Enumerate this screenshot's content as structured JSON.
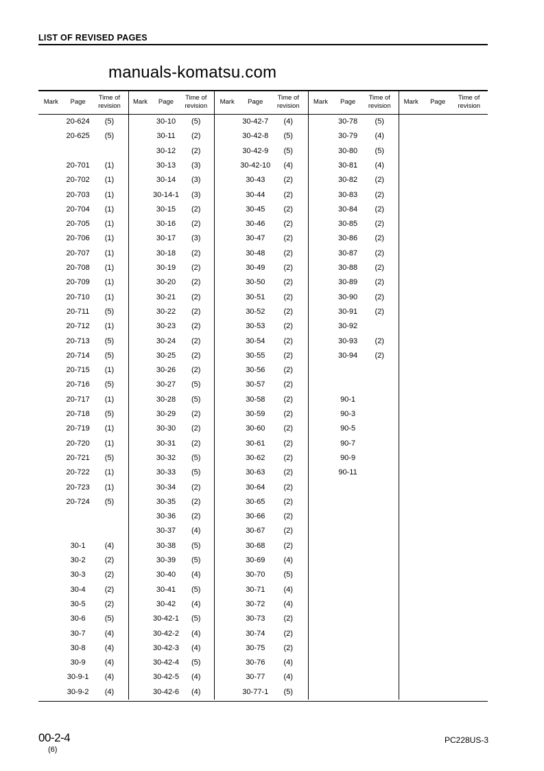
{
  "header": {
    "title": "LIST OF REVISED PAGES"
  },
  "table": {
    "headers": {
      "mark": "Mark",
      "page": "Page",
      "time_line1": "Time of",
      "time_line2": "revision"
    },
    "columns": [
      [
        [
          "20-624",
          "(5)"
        ],
        [
          "20-625",
          "(5)"
        ],
        [
          "",
          ""
        ],
        [
          "20-701",
          "(1)"
        ],
        [
          "20-702",
          "(1)"
        ],
        [
          "20-703",
          "(1)"
        ],
        [
          "20-704",
          "(1)"
        ],
        [
          "20-705",
          "(1)"
        ],
        [
          "20-706",
          "(1)"
        ],
        [
          "20-707",
          "(1)"
        ],
        [
          "20-708",
          "(1)"
        ],
        [
          "20-709",
          "(1)"
        ],
        [
          "20-710",
          "(1)"
        ],
        [
          "20-711",
          "(5)"
        ],
        [
          "20-712",
          "(1)"
        ],
        [
          "20-713",
          "(5)"
        ],
        [
          "20-714",
          "(5)"
        ],
        [
          "20-715",
          "(1)"
        ],
        [
          "20-716",
          "(5)"
        ],
        [
          "20-717",
          "(1)"
        ],
        [
          "20-718",
          "(5)"
        ],
        [
          "20-719",
          "(1)"
        ],
        [
          "20-720",
          "(1)"
        ],
        [
          "20-721",
          "(5)"
        ],
        [
          "20-722",
          "(1)"
        ],
        [
          "20-723",
          "(1)"
        ],
        [
          "20-724",
          "(5)"
        ],
        [
          "",
          ""
        ],
        [
          "",
          ""
        ],
        [
          "30-1",
          "(4)"
        ],
        [
          "30-2",
          "(2)"
        ],
        [
          "30-3",
          "(2)"
        ],
        [
          "30-4",
          "(2)"
        ],
        [
          "30-5",
          "(2)"
        ],
        [
          "30-6",
          "(5)"
        ],
        [
          "30-7",
          "(4)"
        ],
        [
          "30-8",
          "(4)"
        ],
        [
          "30-9",
          "(4)"
        ],
        [
          "30-9-1",
          "(4)"
        ],
        [
          "30-9-2",
          "(4)"
        ]
      ],
      [
        [
          "30-10",
          "(5)"
        ],
        [
          "30-11",
          "(2)"
        ],
        [
          "30-12",
          "(2)"
        ],
        [
          "30-13",
          "(3)"
        ],
        [
          "30-14",
          "(3)"
        ],
        [
          "30-14-1",
          "(3)"
        ],
        [
          "30-15",
          "(2)"
        ],
        [
          "30-16",
          "(2)"
        ],
        [
          "30-17",
          "(3)"
        ],
        [
          "30-18",
          "(2)"
        ],
        [
          "30-19",
          "(2)"
        ],
        [
          "30-20",
          "(2)"
        ],
        [
          "30-21",
          "(2)"
        ],
        [
          "30-22",
          "(2)"
        ],
        [
          "30-23",
          "(2)"
        ],
        [
          "30-24",
          "(2)"
        ],
        [
          "30-25",
          "(2)"
        ],
        [
          "30-26",
          "(2)"
        ],
        [
          "30-27",
          "(5)"
        ],
        [
          "30-28",
          "(5)"
        ],
        [
          "30-29",
          "(2)"
        ],
        [
          "30-30",
          "(2)"
        ],
        [
          "30-31",
          "(2)"
        ],
        [
          "30-32",
          "(5)"
        ],
        [
          "30-33",
          "(5)"
        ],
        [
          "30-34",
          "(2)"
        ],
        [
          "30-35",
          "(2)"
        ],
        [
          "30-36",
          "(2)"
        ],
        [
          "30-37",
          "(4)"
        ],
        [
          "30-38",
          "(5)"
        ],
        [
          "30-39",
          "(5)"
        ],
        [
          "30-40",
          "(4)"
        ],
        [
          "30-41",
          "(5)"
        ],
        [
          "30-42",
          "(4)"
        ],
        [
          "30-42-1",
          "(5)"
        ],
        [
          "30-42-2",
          "(4)"
        ],
        [
          "30-42-3",
          "(4)"
        ],
        [
          "30-42-4",
          "(5)"
        ],
        [
          "30-42-5",
          "(4)"
        ],
        [
          "30-42-6",
          "(4)"
        ]
      ],
      [
        [
          "30-42-7",
          "(4)"
        ],
        [
          "30-42-8",
          "(5)"
        ],
        [
          "30-42-9",
          "(5)"
        ],
        [
          "30-42-10",
          "(4)"
        ],
        [
          "30-43",
          "(2)"
        ],
        [
          "30-44",
          "(2)"
        ],
        [
          "30-45",
          "(2)"
        ],
        [
          "30-46",
          "(2)"
        ],
        [
          "30-47",
          "(2)"
        ],
        [
          "30-48",
          "(2)"
        ],
        [
          "30-49",
          "(2)"
        ],
        [
          "30-50",
          "(2)"
        ],
        [
          "30-51",
          "(2)"
        ],
        [
          "30-52",
          "(2)"
        ],
        [
          "30-53",
          "(2)"
        ],
        [
          "30-54",
          "(2)"
        ],
        [
          "30-55",
          "(2)"
        ],
        [
          "30-56",
          "(2)"
        ],
        [
          "30-57",
          "(2)"
        ],
        [
          "30-58",
          "(2)"
        ],
        [
          "30-59",
          "(2)"
        ],
        [
          "30-60",
          "(2)"
        ],
        [
          "30-61",
          "(2)"
        ],
        [
          "30-62",
          "(2)"
        ],
        [
          "30-63",
          "(2)"
        ],
        [
          "30-64",
          "(2)"
        ],
        [
          "30-65",
          "(2)"
        ],
        [
          "30-66",
          "(2)"
        ],
        [
          "30-67",
          "(2)"
        ],
        [
          "30-68",
          "(2)"
        ],
        [
          "30-69",
          "(4)"
        ],
        [
          "30-70",
          "(5)"
        ],
        [
          "30-71",
          "(4)"
        ],
        [
          "30-72",
          "(4)"
        ],
        [
          "30-73",
          "(2)"
        ],
        [
          "30-74",
          "(2)"
        ],
        [
          "30-75",
          "(2)"
        ],
        [
          "30-76",
          "(4)"
        ],
        [
          "30-77",
          "(4)"
        ],
        [
          "30-77-1",
          "(5)"
        ]
      ],
      [
        [
          "30-78",
          "(5)"
        ],
        [
          "30-79",
          "(4)"
        ],
        [
          "30-80",
          "(5)"
        ],
        [
          "30-81",
          "(4)"
        ],
        [
          "30-82",
          "(2)"
        ],
        [
          "30-83",
          "(2)"
        ],
        [
          "30-84",
          "(2)"
        ],
        [
          "30-85",
          "(2)"
        ],
        [
          "30-86",
          "(2)"
        ],
        [
          "30-87",
          "(2)"
        ],
        [
          "30-88",
          "(2)"
        ],
        [
          "30-89",
          "(2)"
        ],
        [
          "30-90",
          "(2)"
        ],
        [
          "30-91",
          "(2)"
        ],
        [
          "30-92",
          ""
        ],
        [
          "30-93",
          "(2)"
        ],
        [
          "30-94",
          "(2)"
        ],
        [
          "",
          ""
        ],
        [
          "",
          ""
        ],
        [
          "90-1",
          ""
        ],
        [
          "90-3",
          ""
        ],
        [
          "90-5",
          ""
        ],
        [
          "90-7",
          ""
        ],
        [
          "90-9",
          ""
        ],
        [
          "90-11",
          ""
        ]
      ],
      []
    ]
  },
  "watermark": "manuals-komatsu.com",
  "footer": {
    "page_number": "00-2-4",
    "page_revision": "(6)",
    "model": "PC228US-3"
  }
}
